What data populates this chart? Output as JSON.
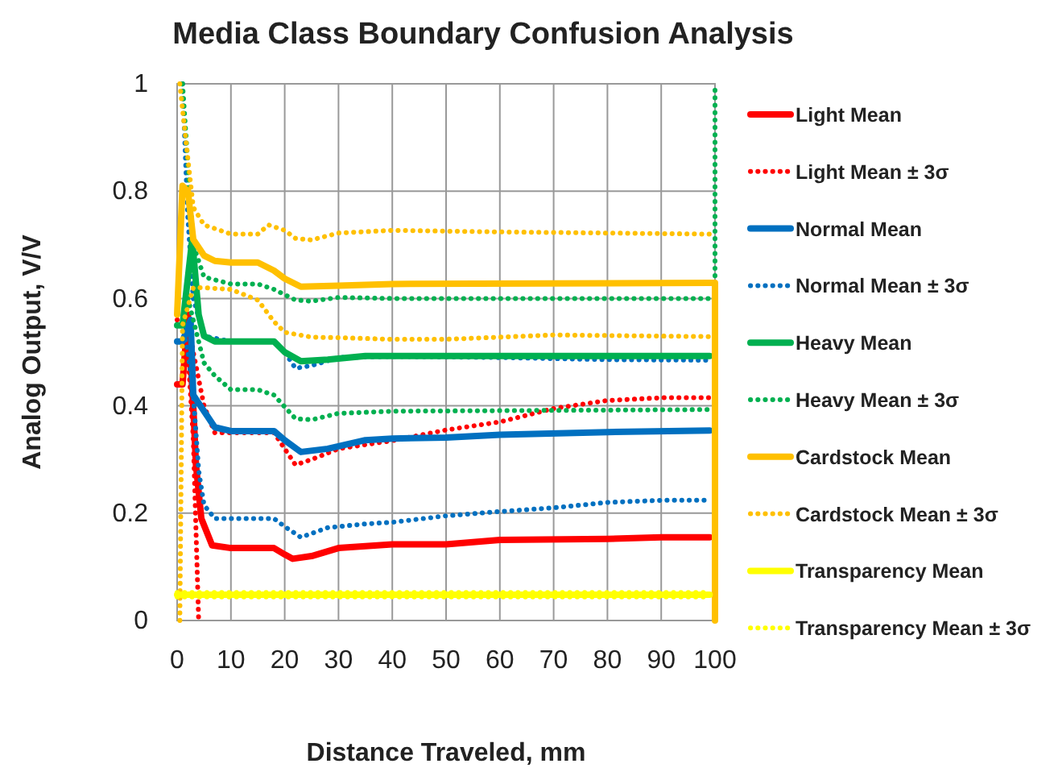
{
  "chart_data": {
    "type": "line",
    "title": "Media Class Boundary Confusion Analysis",
    "xlabel": "Distance Traveled, mm",
    "ylabel": "Analog Output, V/V",
    "xlim": [
      0,
      100
    ],
    "xticks": [
      0,
      10,
      20,
      30,
      40,
      50,
      60,
      70,
      80,
      90,
      100
    ],
    "ylim": [
      0,
      1
    ],
    "yticks": [
      0,
      0.2,
      0.4,
      0.6,
      0.8,
      1
    ],
    "grid": true,
    "legend": "right",
    "marker": "none",
    "series": [
      {
        "name": "Light Mean",
        "color": "#ff0000",
        "line_style": "solid",
        "x": [
          0,
          1,
          2,
          3,
          3.5,
          4.5,
          6.5,
          10,
          18,
          20,
          21.5,
          25,
          30,
          40,
          50,
          60,
          80,
          90,
          99
        ],
        "values": [
          0.44,
          0.44,
          0.57,
          0.4,
          0.29,
          0.19,
          0.14,
          0.135,
          0.135,
          0.123,
          0.115,
          0.12,
          0.135,
          0.142,
          0.142,
          0.15,
          0.152,
          0.155,
          0.155
        ]
      },
      {
        "name": "Light Mean ± 3σ",
        "color": "#ff0000",
        "line_style": "dotted",
        "x": [
          0,
          2,
          3,
          5,
          7,
          10,
          18,
          22,
          25,
          30,
          40,
          50,
          60,
          70,
          80,
          90,
          99
        ],
        "values": [
          0.56,
          0.57,
          0.5,
          0.4,
          0.35,
          0.35,
          0.35,
          0.29,
          0.3,
          0.32,
          0.335,
          0.355,
          0.37,
          0.395,
          0.41,
          0.415,
          0.415
        ]
      },
      {
        "color": "#ff0000",
        "line_style": "dotted",
        "x": [
          1,
          2,
          3,
          4
        ],
        "values": [
          0.47,
          0.5,
          0.34,
          0
        ]
      },
      {
        "name": "Normal Mean",
        "color": "#0070c0",
        "line_style": "solid",
        "x": [
          0,
          1,
          2.5,
          3,
          5,
          7,
          10,
          18,
          20,
          23,
          28,
          35,
          40,
          50,
          60,
          80,
          99
        ],
        "values": [
          0.52,
          0.52,
          0.56,
          0.42,
          0.39,
          0.36,
          0.353,
          0.353,
          0.336,
          0.314,
          0.32,
          0.336,
          0.339,
          0.341,
          0.346,
          0.351,
          0.354
        ]
      },
      {
        "name": "Normal Mean ± 3σ",
        "color": "#0070c0",
        "line_style": "dotted",
        "x": [
          1,
          2,
          3,
          5,
          10,
          18,
          20,
          22,
          25,
          30,
          40,
          60,
          80,
          99
        ],
        "values": [
          1,
          0.75,
          0.6,
          0.53,
          0.52,
          0.52,
          0.5,
          0.47,
          0.475,
          0.49,
          0.492,
          0.49,
          0.486,
          0.485
        ]
      },
      {
        "color": "#0070c0",
        "line_style": "dotted",
        "x": [
          1,
          2,
          3,
          4,
          5,
          7,
          10,
          18,
          20,
          23,
          28,
          35,
          40,
          50,
          60,
          70,
          80,
          90,
          99
        ],
        "values": [
          0.55,
          0.5,
          0.42,
          0.28,
          0.215,
          0.19,
          0.19,
          0.19,
          0.175,
          0.155,
          0.173,
          0.18,
          0.183,
          0.195,
          0.203,
          0.21,
          0.22,
          0.224,
          0.224
        ]
      },
      {
        "name": "Heavy Mean",
        "color": "#00b050",
        "line_style": "solid",
        "x": [
          0,
          1,
          2.8,
          4,
          5,
          7,
          10,
          18,
          20,
          23,
          28,
          35,
          50,
          99
        ],
        "values": [
          0.55,
          0.55,
          0.71,
          0.57,
          0.53,
          0.52,
          0.52,
          0.52,
          0.5,
          0.483,
          0.486,
          0.493,
          0.493,
          0.493
        ]
      },
      {
        "name": "Heavy Mean ± 3σ",
        "color": "#00b050",
        "line_style": "dotted",
        "x": [
          1,
          2,
          3,
          5,
          10,
          15,
          18,
          22,
          25,
          30,
          40,
          99,
          100,
          100
        ],
        "values": [
          1,
          0.85,
          0.7,
          0.64,
          0.627,
          0.627,
          0.617,
          0.597,
          0.595,
          0.602,
          0.6,
          0.6,
          0.6,
          1
        ]
      },
      {
        "color": "#00b050",
        "line_style": "dotted",
        "x": [
          2,
          3,
          5,
          7,
          10,
          15,
          18,
          22,
          25,
          30,
          40,
          99,
          100,
          100
        ],
        "values": [
          0.6,
          0.56,
          0.48,
          0.456,
          0.43,
          0.43,
          0.42,
          0.376,
          0.374,
          0.386,
          0.39,
          0.393,
          0.393,
          0
        ]
      },
      {
        "name": "Cardstock Mean",
        "color": "#ffc000",
        "line_style": "solid",
        "x": [
          0,
          1,
          2,
          3,
          5,
          7,
          10,
          15,
          18,
          20,
          23,
          30,
          40,
          99,
          100,
          100
        ],
        "values": [
          0.57,
          0.81,
          0.8,
          0.71,
          0.68,
          0.67,
          0.667,
          0.667,
          0.652,
          0.637,
          0.622,
          0.624,
          0.627,
          0.629,
          0.629,
          0
        ]
      },
      {
        "name": "Cardstock Mean ± 3σ",
        "color": "#ffc000",
        "line_style": "dotted",
        "x": [
          0.5,
          2,
          3,
          5,
          10,
          15,
          17,
          20,
          22,
          25,
          30,
          40,
          60,
          99
        ],
        "values": [
          1,
          0.86,
          0.77,
          0.737,
          0.72,
          0.72,
          0.737,
          0.727,
          0.712,
          0.709,
          0.722,
          0.727,
          0.724,
          0.72
        ]
      },
      {
        "color": "#ffc000",
        "line_style": "dotted",
        "x": [
          0.5,
          1,
          3,
          5,
          10,
          15,
          18,
          20,
          25,
          30,
          40,
          50,
          70,
          99
        ],
        "values": [
          0,
          0.55,
          0.62,
          0.62,
          0.617,
          0.597,
          0.557,
          0.537,
          0.528,
          0.527,
          0.524,
          0.524,
          0.532,
          0.529
        ]
      },
      {
        "name": "Transparency Mean",
        "color": "#ffff00",
        "line_style": "solid",
        "x": [
          0,
          99
        ],
        "values": [
          0.048,
          0.048
        ]
      },
      {
        "name": "Transparency Mean ± 3σ",
        "color": "#ffff00",
        "line_style": "dotted",
        "x": [
          0,
          99
        ],
        "values": [
          0.052,
          0.052
        ]
      },
      {
        "color": "#ffff00",
        "line_style": "dotted",
        "x": [
          0,
          99
        ],
        "values": [
          0.044,
          0.044
        ]
      }
    ]
  }
}
